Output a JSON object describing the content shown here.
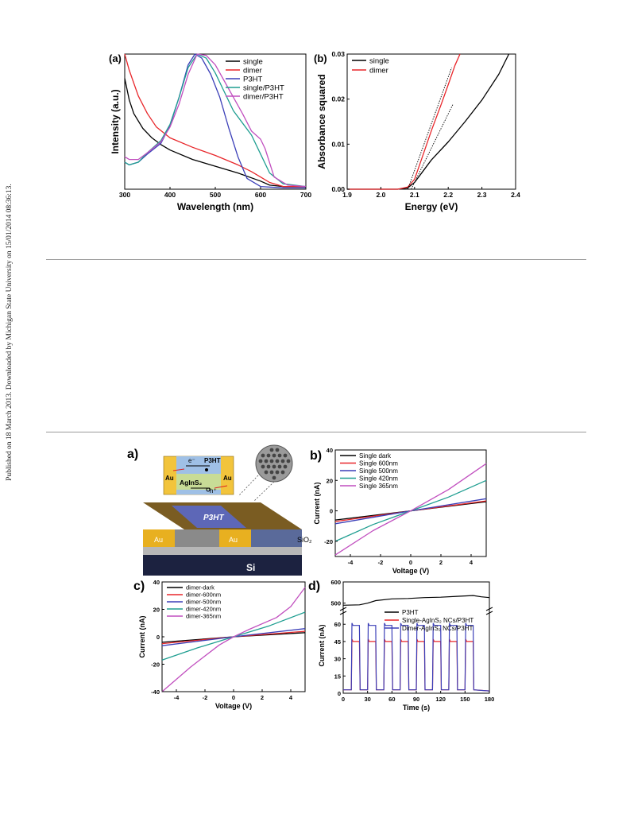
{
  "margin_note": "Published on 18 March 2013. Downloaded by Michigan State University on 15/01/2014 08:36:13.",
  "figure_top": {
    "panel_a": {
      "label": "(a)",
      "chart_data": {
        "type": "line",
        "xlabel": "Wavelength (nm)",
        "ylabel": "Intensity (a.u.)",
        "xlim": [
          300,
          700
        ],
        "ylim": [
          0,
          1
        ],
        "xticks": [
          300,
          400,
          500,
          600,
          700
        ],
        "legend_position": "top-right",
        "series": [
          {
            "name": "single",
            "color": "#000000",
            "x": [
              300,
              310,
              320,
              340,
              360,
              380,
              400,
              450,
              500,
              550,
              600,
              620,
              650,
              700
            ],
            "y": [
              0.82,
              0.66,
              0.56,
              0.45,
              0.38,
              0.33,
              0.29,
              0.22,
              0.17,
              0.12,
              0.06,
              0.03,
              0.02,
              0.02
            ]
          },
          {
            "name": "dimer",
            "color": "#e8262a",
            "x": [
              300,
              310,
              330,
              350,
              370,
              400,
              450,
              500,
              550,
              580,
              600,
              620,
              650,
              700
            ],
            "y": [
              1.0,
              0.88,
              0.69,
              0.56,
              0.46,
              0.38,
              0.31,
              0.25,
              0.18,
              0.13,
              0.09,
              0.05,
              0.02,
              0.02
            ]
          },
          {
            "name": "P3HT",
            "color": "#3b3fb8",
            "x": [
              300,
              310,
              330,
              350,
              380,
              400,
              420,
              440,
              455,
              470,
              490,
              510,
              530,
              550,
              570,
              600,
              650,
              700
            ],
            "y": [
              0.2,
              0.18,
              0.2,
              0.26,
              0.34,
              0.47,
              0.68,
              0.92,
              1.0,
              0.97,
              0.85,
              0.68,
              0.45,
              0.24,
              0.08,
              0.02,
              0.01,
              0.01
            ]
          },
          {
            "name": "single/P3HT",
            "color": "#1f9e91",
            "x": [
              300,
              310,
              330,
              350,
              380,
              400,
              420,
              440,
              460,
              480,
              500,
              520,
              540,
              560,
              580,
              600,
              620,
              650,
              700
            ],
            "y": [
              0.2,
              0.18,
              0.2,
              0.27,
              0.36,
              0.48,
              0.68,
              0.9,
              1.0,
              0.97,
              0.86,
              0.72,
              0.58,
              0.49,
              0.4,
              0.26,
              0.12,
              0.04,
              0.02
            ]
          },
          {
            "name": "dimer/P3HT",
            "color": "#c14fbf",
            "x": [
              300,
              310,
              330,
              350,
              380,
              400,
              420,
              440,
              460,
              480,
              500,
              520,
              540,
              560,
              580,
              600,
              610,
              630,
              660,
              700
            ],
            "y": [
              0.24,
              0.22,
              0.22,
              0.27,
              0.35,
              0.46,
              0.63,
              0.85,
              1.0,
              0.99,
              0.92,
              0.8,
              0.68,
              0.56,
              0.43,
              0.37,
              0.3,
              0.09,
              0.03,
              0.02
            ]
          }
        ]
      }
    },
    "panel_b": {
      "label": "(b)",
      "chart_data": {
        "type": "line",
        "xlabel": "Energy (eV)",
        "ylabel": "Absorbance squared",
        "xlim": [
          1.9,
          2.4
        ],
        "ylim": [
          0,
          0.03
        ],
        "xticks": [
          1.9,
          2.0,
          2.1,
          2.2,
          2.3,
          2.4
        ],
        "xtick_labels": [
          "1.9",
          "2.0",
          "2.1",
          "2.2",
          "2.3",
          "2.4"
        ],
        "yticks": [
          0,
          0.01,
          0.02,
          0.03
        ],
        "ytick_labels": [
          "0.00",
          "0.01",
          "0.02",
          "0.03"
        ],
        "legend_position": "top-left",
        "series": [
          {
            "name": "single",
            "color": "#000000",
            "x": [
              1.9,
              2.0,
              2.05,
              2.08,
              2.1,
              2.12,
              2.15,
              2.2,
              2.25,
              2.3,
              2.35,
              2.38
            ],
            "y": [
              0,
              0,
              0,
              0.0003,
              0.0015,
              0.0035,
              0.0065,
              0.0105,
              0.015,
              0.0198,
              0.0255,
              0.03
            ]
          },
          {
            "name": "dimer",
            "color": "#e8262a",
            "x": [
              1.9,
              2.0,
              2.05,
              2.08,
              2.1,
              2.12,
              2.15,
              2.18,
              2.2,
              2.22,
              2.235
            ],
            "y": [
              0,
              0,
              0,
              0.0005,
              0.0022,
              0.0065,
              0.013,
              0.019,
              0.0232,
              0.0275,
              0.03
            ]
          }
        ],
        "tangent_lines": [
          {
            "x": [
              2.08,
              2.21
            ],
            "y": [
              0,
              0.027
            ]
          },
          {
            "x": [
              2.09,
              2.215
            ],
            "y": [
              0,
              0.019
            ]
          }
        ]
      }
    }
  },
  "figure_bottom": {
    "panel_a": {
      "label": "a)",
      "schematic": {
        "p3ht_label": "P3HT",
        "electron_label": "e⁻",
        "hole_label": "h⁺",
        "au_label": "Au",
        "nc_label": "AgInS₂",
        "sio2_label": "SiO₂",
        "si_label": "Si"
      }
    },
    "panel_b": {
      "label": "b)",
      "chart_data": {
        "type": "line",
        "xlabel": "Voltage (V)",
        "ylabel": "Current (nA)",
        "xlim": [
          -5,
          5
        ],
        "ylim": [
          -30,
          40
        ],
        "xticks": [
          -4,
          -2,
          0,
          2,
          4
        ],
        "yticks": [
          -20,
          0,
          20,
          40
        ],
        "legend_position": "top-left",
        "series": [
          {
            "name": "Single dark",
            "color": "#000000",
            "x": [
              -5,
              0,
              5
            ],
            "y": [
              -6,
              0,
              6
            ]
          },
          {
            "name": "Single 600nm",
            "color": "#e8262a",
            "x": [
              -5,
              0,
              5
            ],
            "y": [
              -7,
              0,
              6.5
            ]
          },
          {
            "name": "Single 500nm",
            "color": "#3b3fb8",
            "x": [
              -5,
              0,
              5
            ],
            "y": [
              -8.5,
              0,
              8
            ]
          },
          {
            "name": "Single 420nm",
            "color": "#1f9e91",
            "x": [
              -5,
              -2.5,
              0,
              2.5,
              5
            ],
            "y": [
              -20,
              -9,
              0,
              9,
              20
            ]
          },
          {
            "name": "Single 365nm",
            "color": "#c14fbf",
            "x": [
              -5,
              -2.5,
              0,
              2.5,
              5
            ],
            "y": [
              -29,
              -13,
              0,
              14,
              31
            ]
          }
        ]
      }
    },
    "panel_c": {
      "label": "c)",
      "chart_data": {
        "type": "line",
        "xlabel": "Voltage (V)",
        "ylabel": "Current (nA)",
        "xlim": [
          -5,
          5
        ],
        "ylim": [
          -40,
          40
        ],
        "xticks": [
          -4,
          -2,
          0,
          2,
          4
        ],
        "yticks": [
          -40,
          -20,
          0,
          20,
          40
        ],
        "legend_position": "top-left",
        "series": [
          {
            "name": "dimer-dark",
            "color": "#000000",
            "x": [
              -5,
              0,
              5
            ],
            "y": [
              -4,
              0,
              3
            ]
          },
          {
            "name": "dimer-600nm",
            "color": "#e8262a",
            "x": [
              -5,
              0,
              5
            ],
            "y": [
              -5,
              0,
              4
            ]
          },
          {
            "name": "dimer-500nm",
            "color": "#3b3fb8",
            "x": [
              -5,
              0,
              5
            ],
            "y": [
              -6.5,
              0,
              6
            ]
          },
          {
            "name": "dimer-420nm",
            "color": "#1f9e91",
            "x": [
              -5,
              -2.5,
              0,
              2.5,
              5
            ],
            "y": [
              -17,
              -8,
              0,
              8,
              18
            ]
          },
          {
            "name": "dimer-365nm",
            "color": "#c14fbf",
            "x": [
              -5,
              -3,
              -1,
              0,
              1,
              3,
              4,
              5
            ],
            "y": [
              -40,
              -22,
              -6,
              0,
              5,
              14,
              22,
              36
            ]
          }
        ]
      }
    },
    "panel_d": {
      "label": "d)",
      "chart_data": {
        "type": "line",
        "xlabel": "Time (s)",
        "ylabel": "Current (nA)",
        "xlim": [
          0,
          180
        ],
        "xticks": [
          0,
          30,
          60,
          90,
          120,
          150,
          180
        ],
        "broken_axis": true,
        "upper_ylim": [
          480,
          600
        ],
        "upper_yticks": [
          500,
          600
        ],
        "lower_ylim": [
          0,
          65
        ],
        "lower_yticks": [
          0,
          15,
          30,
          45,
          60
        ],
        "legend_position": "top-right",
        "on_intervals": [
          [
            10,
            20
          ],
          [
            30,
            40
          ],
          [
            50,
            60
          ],
          [
            70,
            80
          ],
          [
            90,
            100
          ],
          [
            110,
            120
          ],
          [
            130,
            140
          ],
          [
            150,
            160
          ]
        ],
        "series": [
          {
            "name": "P3HT",
            "color": "#000000",
            "x": [
              0,
              20,
              30,
              40,
              60,
              80,
              100,
              120,
              140,
              160,
              170,
              180
            ],
            "y": [
              490,
              492,
              500,
              512,
              520,
              522,
              526,
              528,
              532,
              536,
              530,
              526
            ]
          },
          {
            "name": "Single-AgInS₂ NCs/P3HT",
            "color": "#e8262a",
            "on_value": 45,
            "off_value": 3
          },
          {
            "name": "Dimer-AgInS₂ NCs/P3HT",
            "color": "#3b3fb8",
            "on_value": 59,
            "off_value": 3
          }
        ]
      }
    }
  }
}
